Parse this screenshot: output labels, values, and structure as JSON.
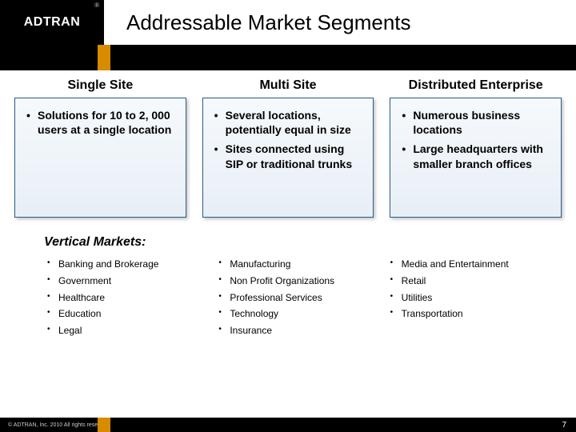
{
  "logo": {
    "text": "ADTRAN",
    "registered": "®"
  },
  "title": "Addressable Market Segments",
  "accent_color": "#d68b00",
  "segments": [
    {
      "heading": "Single Site",
      "bullets": [
        "Solutions for 10 to 2, 000 users at a single location"
      ]
    },
    {
      "heading": "Multi Site",
      "bullets": [
        "Several locations, potentially equal in size",
        "Sites connected using SIP or traditional trunks"
      ]
    },
    {
      "heading": "Distributed Enterprise",
      "bullets": [
        "Numerous business locations",
        "Large headquarters with smaller branch offices"
      ]
    }
  ],
  "vertical": {
    "title": "Vertical Markets:",
    "columns": [
      [
        "Banking and Brokerage",
        "Government",
        "Healthcare",
        "Education",
        "Legal"
      ],
      [
        "Manufacturing",
        "Non Profit Organizations",
        "Professional Services",
        "Technology",
        "Insurance"
      ],
      [
        "Media and Entertainment",
        "Retail",
        "Utilities",
        "Transportation"
      ]
    ]
  },
  "footer": {
    "copyright": "© ADTRAN, Inc. 2010 All rights reserved",
    "page": "7"
  }
}
